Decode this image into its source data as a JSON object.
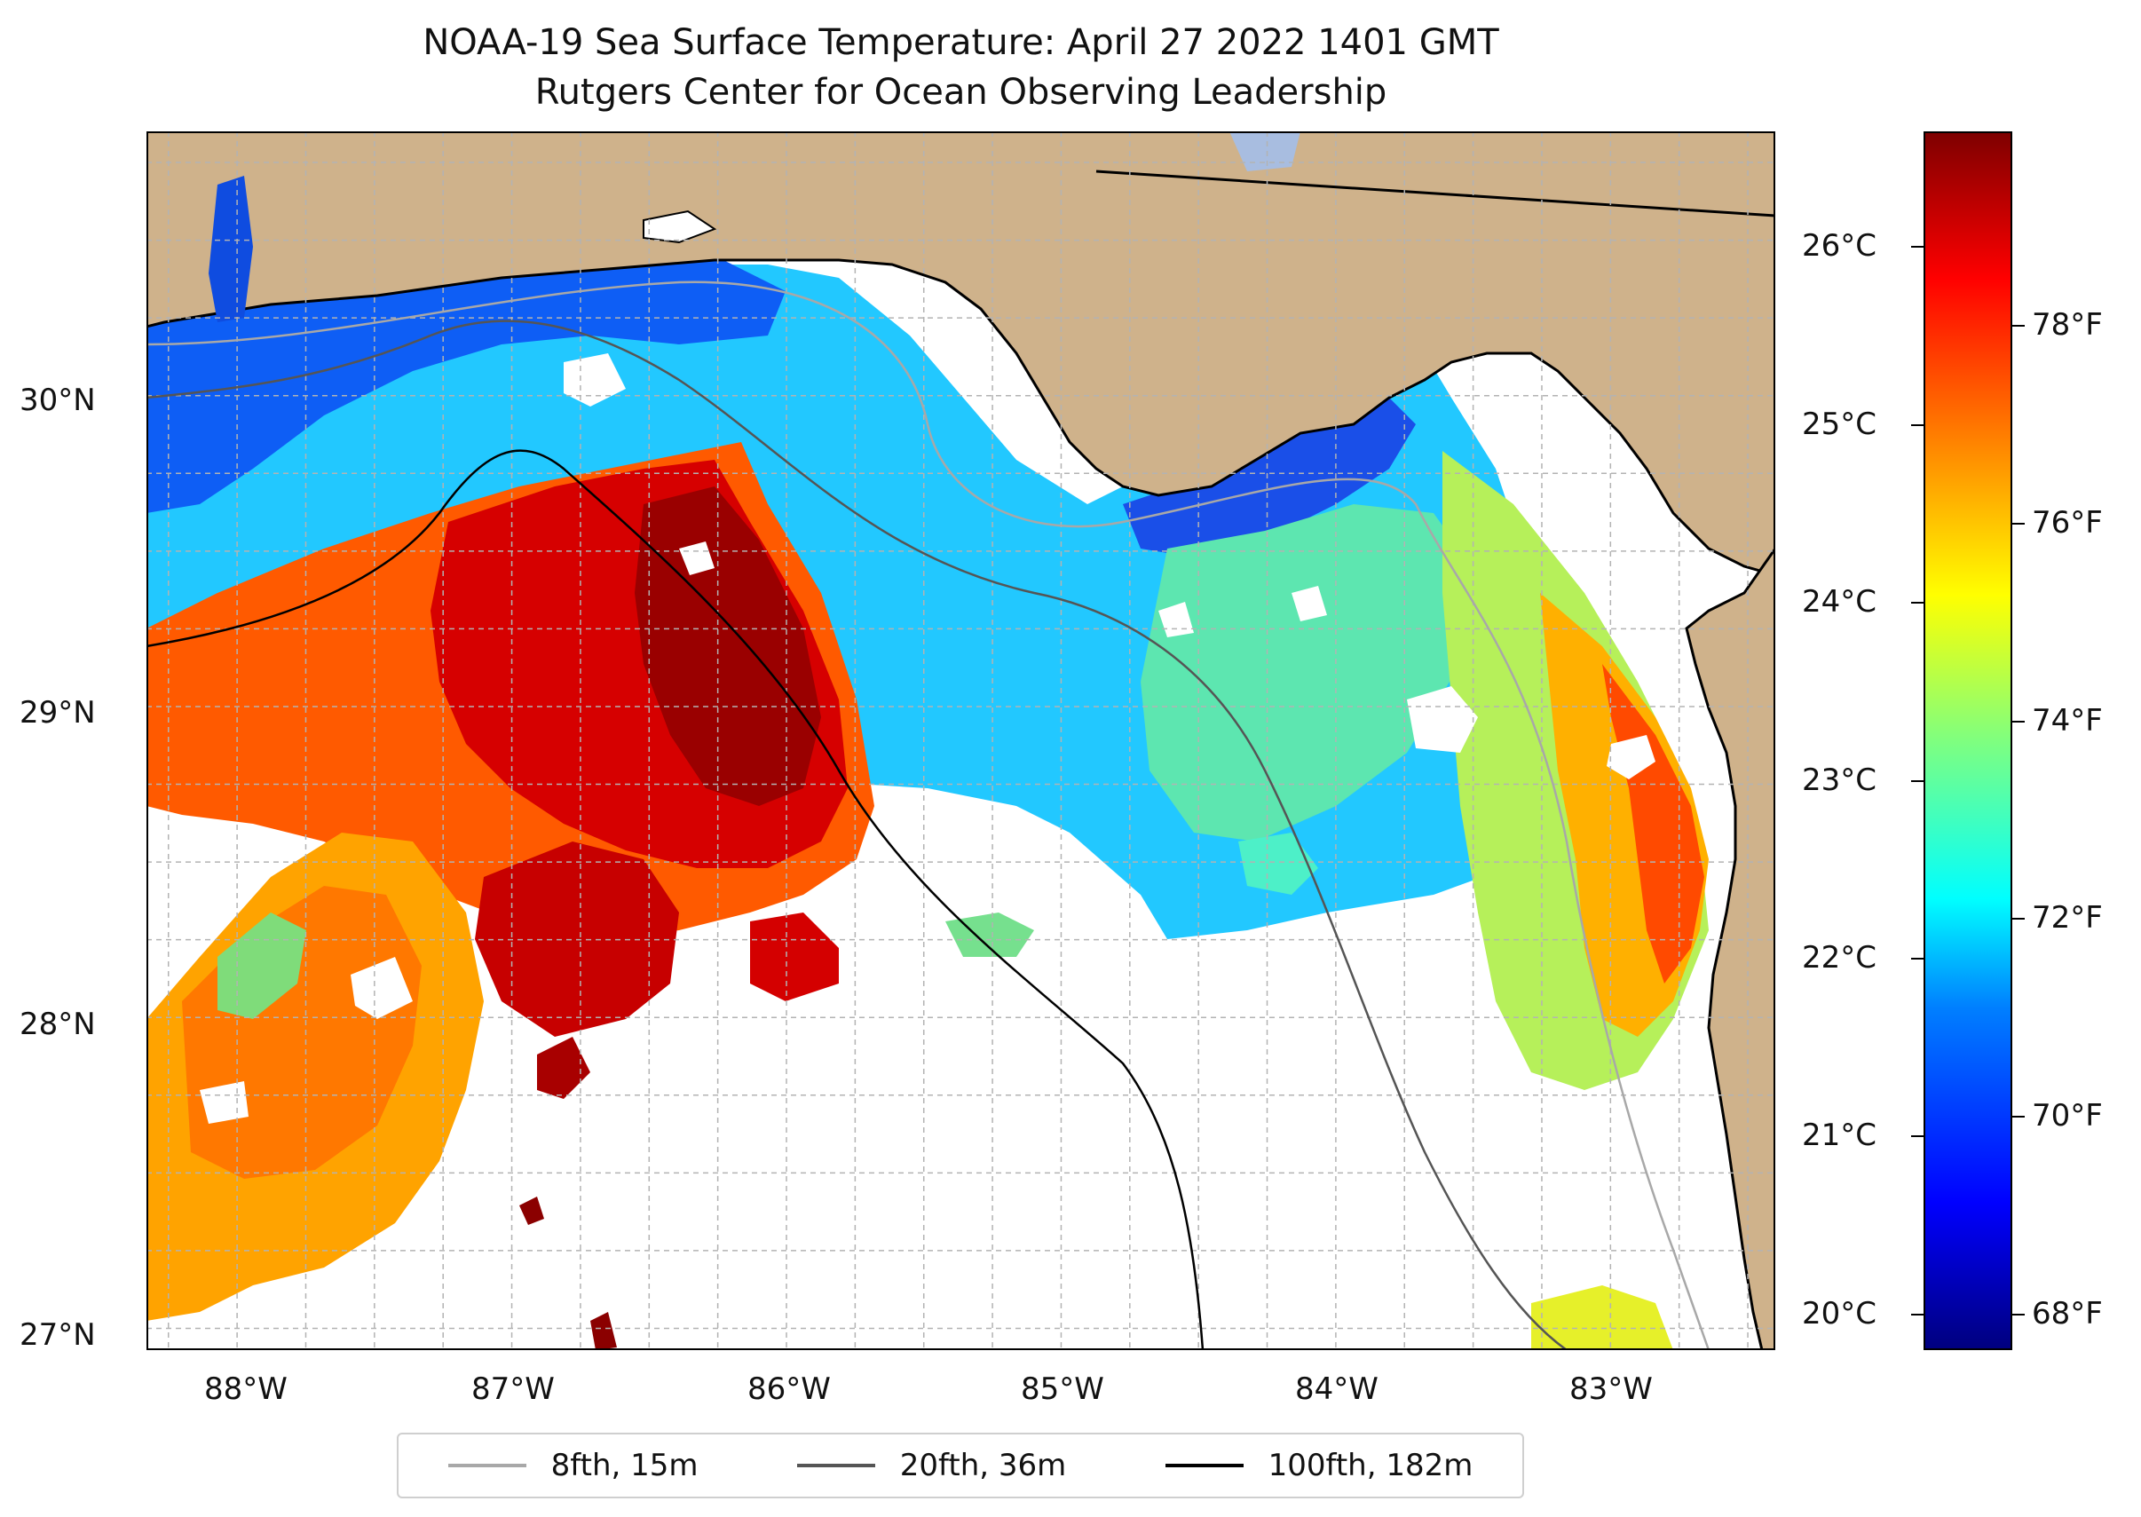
{
  "chart_data": {
    "type": "heatmap",
    "title": "NOAA-19 Sea Surface Temperature: April 27 2022 1401 GMT",
    "subtitle": "Rutgers Center for Ocean Observing Leadership",
    "x_axis": {
      "labels": [
        "88°W",
        "87°W",
        "86°W",
        "85°W",
        "84°W",
        "83°W"
      ],
      "values": [
        -88,
        -87,
        -86,
        -85,
        -84,
        -83
      ],
      "range": [
        -88.33,
        -82.4
      ]
    },
    "y_axis": {
      "labels": [
        "30°N",
        "29°N",
        "28°N",
        "27°N"
      ],
      "values": [
        30,
        29,
        28,
        27
      ],
      "range": [
        26.93,
        30.85
      ]
    },
    "colorbar": {
      "celsius_labels": [
        "26°C",
        "25°C",
        "24°C",
        "23°C",
        "22°C",
        "21°C",
        "20°C"
      ],
      "celsius_values": [
        26,
        25,
        24,
        23,
        22,
        21,
        20
      ],
      "fahrenheit_labels": [
        "78°F",
        "76°F",
        "74°F",
        "72°F",
        "70°F",
        "68°F"
      ],
      "fahrenheit_values": [
        78,
        76,
        74,
        72,
        70,
        68
      ],
      "range_c": [
        19.8,
        26.65
      ],
      "colormap": "jet"
    },
    "legend": [
      {
        "label": "8fth, 15m",
        "color": "#a8a8a8"
      },
      {
        "label": "20fth, 36m",
        "color": "#555555"
      },
      {
        "label": "100fth, 182m",
        "color": "#000000"
      }
    ]
  },
  "colors": {
    "land": "#cfb28b",
    "no_data": "#ffffff",
    "gridline": "#b3b3b3"
  }
}
